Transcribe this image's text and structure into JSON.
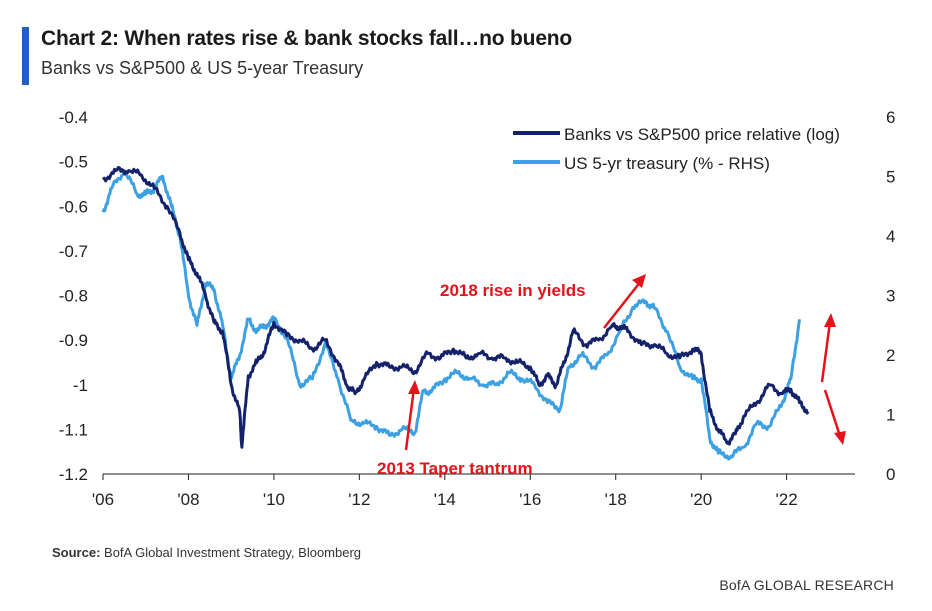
{
  "header": {
    "title": "Chart 2: When rates rise & bank stocks fall…no bueno",
    "subtitle": "Banks vs S&P500 & US 5-year Treasury",
    "accent_color": "#1f5fc6"
  },
  "footer": {
    "source_label": "Source:",
    "source_text": " BofA Global Investment Strategy, Bloomberg",
    "brand": "BofA GLOBAL RESEARCH"
  },
  "chart_data": {
    "type": "line",
    "x_tick_labels": [
      "'06",
      "'08",
      "'10",
      "'12",
      "'14",
      "'16",
      "'18",
      "'20",
      "'22"
    ],
    "x_ticks": [
      2006,
      2008,
      2010,
      2012,
      2014,
      2016,
      2018,
      2020,
      2022
    ],
    "xlim": [
      2006,
      2023.6
    ],
    "left_axis": {
      "ylim": [
        -1.2,
        -0.4
      ],
      "ticks": [
        -0.4,
        -0.5,
        -0.6,
        -0.7,
        -0.8,
        -0.9,
        -1,
        -1.1,
        -1.2
      ]
    },
    "right_axis": {
      "ylim": [
        0,
        6
      ],
      "ticks": [
        6,
        5,
        4,
        3,
        2,
        1,
        0
      ]
    },
    "legend_position": "top-right",
    "grid": false,
    "series": [
      {
        "name": "Banks vs S&P500 price relative (log)",
        "axis": "left",
        "color": "#14226b",
        "x": [
          2006.0,
          2006.3,
          2006.6,
          2006.9,
          2007.2,
          2007.5,
          2007.8,
          2008.0,
          2008.2,
          2008.4,
          2008.6,
          2008.8,
          2009.0,
          2009.2,
          2009.25,
          2009.4,
          2009.6,
          2009.8,
          2010.0,
          2010.3,
          2010.6,
          2010.9,
          2011.2,
          2011.5,
          2011.7,
          2011.9,
          2012.1,
          2012.4,
          2012.7,
          2013.0,
          2013.3,
          2013.6,
          2013.9,
          2014.2,
          2014.5,
          2014.8,
          2015.1,
          2015.4,
          2015.7,
          2016.0,
          2016.2,
          2016.4,
          2016.6,
          2016.8,
          2017.0,
          2017.3,
          2017.6,
          2017.9,
          2018.1,
          2018.3,
          2018.6,
          2018.9,
          2019.2,
          2019.5,
          2019.8,
          2020.0,
          2020.2,
          2020.4,
          2020.6,
          2020.8,
          2021.0,
          2021.3,
          2021.6,
          2021.9,
          2022.1,
          2022.3,
          2022.5
        ],
        "values": [
          -0.54,
          -0.52,
          -0.52,
          -0.53,
          -0.56,
          -0.6,
          -0.66,
          -0.72,
          -0.75,
          -0.8,
          -0.86,
          -0.88,
          -1.0,
          -1.06,
          -1.14,
          -0.98,
          -0.95,
          -0.92,
          -0.86,
          -0.89,
          -0.9,
          -0.92,
          -0.9,
          -0.95,
          -1.0,
          -1.02,
          -0.99,
          -0.95,
          -0.96,
          -0.96,
          -0.97,
          -0.93,
          -0.94,
          -0.92,
          -0.94,
          -0.93,
          -0.94,
          -0.94,
          -0.95,
          -0.96,
          -1.0,
          -0.98,
          -1.0,
          -0.95,
          -0.88,
          -0.91,
          -0.9,
          -0.87,
          -0.87,
          -0.88,
          -0.91,
          -0.91,
          -0.93,
          -0.94,
          -0.92,
          -0.93,
          -1.06,
          -1.1,
          -1.13,
          -1.11,
          -1.07,
          -1.04,
          -1.0,
          -1.02,
          -1.01,
          -1.04,
          -1.06
        ]
      },
      {
        "name": "US 5-yr treasury (% - RHS)",
        "axis": "right",
        "color": "#3da0e2",
        "x": [
          2006.0,
          2006.2,
          2006.5,
          2006.8,
          2007.0,
          2007.2,
          2007.4,
          2007.6,
          2007.8,
          2008.0,
          2008.2,
          2008.4,
          2008.6,
          2008.8,
          2009.0,
          2009.2,
          2009.4,
          2009.6,
          2009.8,
          2010.0,
          2010.3,
          2010.6,
          2010.9,
          2011.2,
          2011.5,
          2011.8,
          2012.1,
          2012.4,
          2012.7,
          2013.0,
          2013.3,
          2013.5,
          2013.7,
          2014.0,
          2014.3,
          2014.6,
          2014.9,
          2015.2,
          2015.5,
          2015.8,
          2016.1,
          2016.4,
          2016.7,
          2016.9,
          2017.2,
          2017.5,
          2017.8,
          2018.1,
          2018.4,
          2018.7,
          2018.9,
          2019.2,
          2019.5,
          2019.8,
          2020.0,
          2020.2,
          2020.4,
          2020.7,
          2021.0,
          2021.3,
          2021.6,
          2021.9,
          2022.1,
          2022.3
        ],
        "values": [
          4.4,
          4.8,
          5.1,
          4.7,
          4.7,
          4.8,
          5.0,
          4.5,
          4.0,
          3.0,
          2.5,
          3.2,
          3.1,
          2.5,
          1.6,
          2.0,
          2.6,
          2.4,
          2.5,
          2.6,
          2.3,
          1.5,
          1.6,
          2.2,
          1.6,
          0.9,
          0.85,
          0.8,
          0.65,
          0.75,
          0.7,
          1.4,
          1.4,
          1.6,
          1.7,
          1.6,
          1.5,
          1.5,
          1.7,
          1.6,
          1.5,
          1.2,
          1.1,
          1.8,
          2.0,
          1.8,
          2.0,
          2.4,
          2.8,
          2.9,
          2.8,
          2.4,
          1.8,
          1.6,
          1.6,
          0.6,
          0.35,
          0.3,
          0.45,
          0.85,
          0.8,
          1.2,
          1.6,
          2.6
        ]
      }
    ],
    "annotations": [
      {
        "text": "2018 rise in yields",
        "color": "#e3121b"
      },
      {
        "text": "2013 Taper tantrum",
        "color": "#e3121b"
      }
    ]
  }
}
